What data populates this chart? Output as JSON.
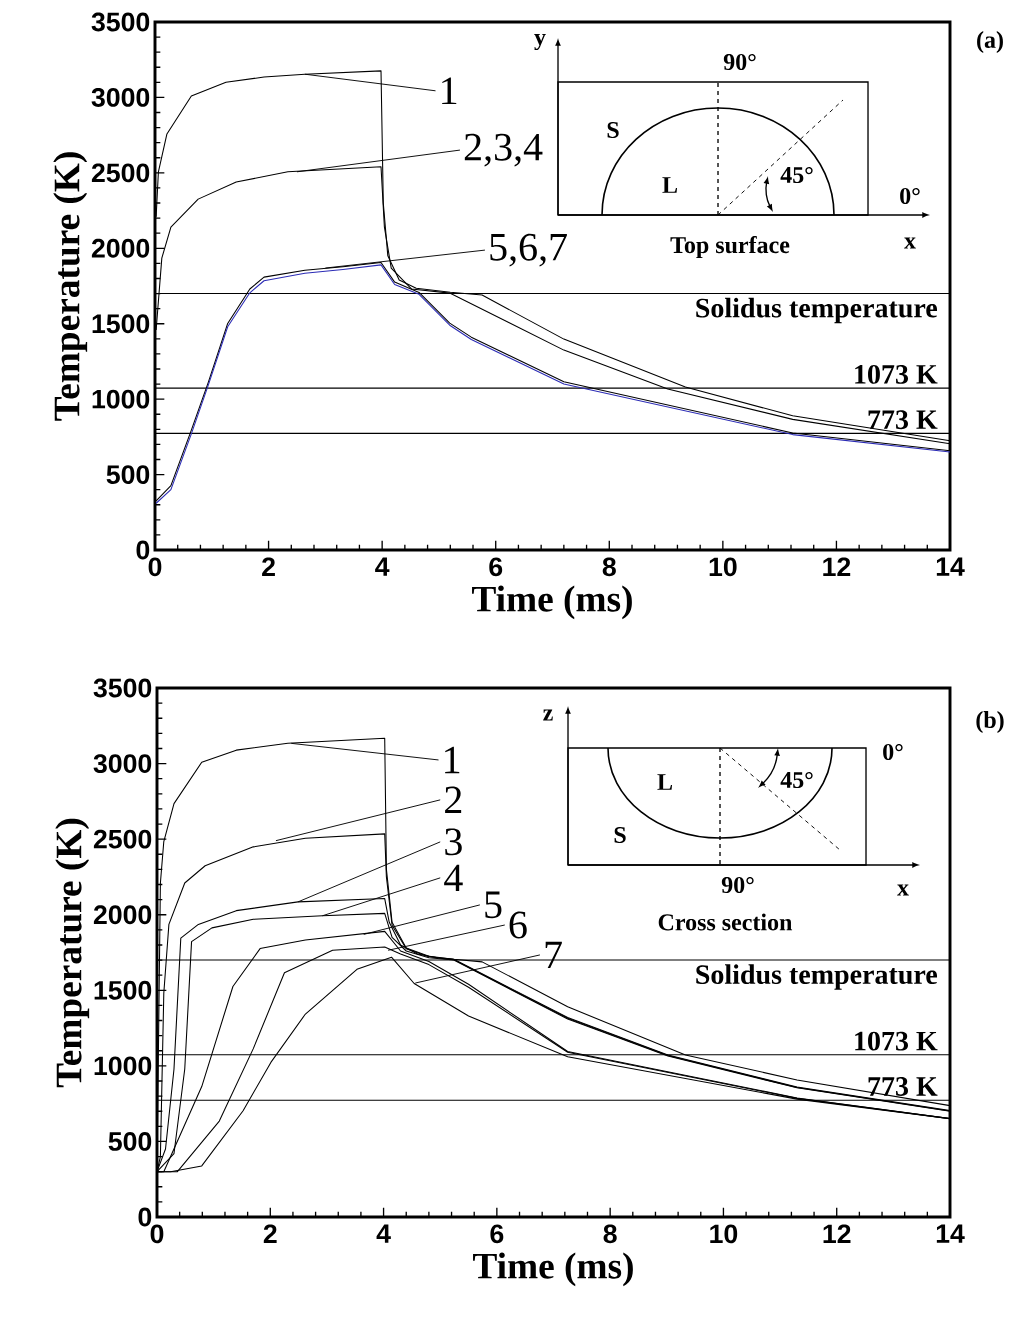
{
  "chart_data": [
    {
      "type": "line",
      "xlabel": "Time (ms)",
      "ylabel": "Temperature (K)",
      "xlim": [
        0,
        14
      ],
      "ylim": [
        0,
        3500
      ],
      "xticks": [
        0,
        2,
        4,
        6,
        8,
        10,
        12,
        14
      ],
      "yticks": [
        0,
        500,
        1000,
        1500,
        2000,
        2500,
        3000,
        3500
      ],
      "series": [
        {
          "color": "#000000",
          "x": [
            0.02,
            0.06,
            0.21,
            0.64,
            1.25,
            1.92,
            2.64,
            3.98,
            4.02,
            4.1,
            4.3,
            4.6,
            5.2,
            5.76,
            7.2,
            9.34,
            11.23,
            14
          ],
          "values": [
            2209,
            2507,
            2758,
            3009,
            3101,
            3135,
            3154,
            3176,
            2300,
            1950,
            1790,
            1735,
            1708,
            1690,
            1398,
            1080,
            890,
            724
          ]
        },
        {
          "color": "#000000",
          "x": [
            0.02,
            0.12,
            0.28,
            0.76,
            1.43,
            2.34,
            3.98,
            4.04,
            4.16,
            4.52,
            5.19,
            7.2,
            9.03,
            11.23,
            14
          ],
          "values": [
            1458,
            1935,
            2140,
            2326,
            2439,
            2507,
            2541,
            2140,
            1869,
            1730,
            1703,
            1325,
            1067,
            866,
            705
          ]
        },
        {
          "color": "#000000",
          "x": [
            0.02,
            0.28,
            0.64,
            0.94,
            1.28,
            1.67,
            1.92,
            2.64,
            3.31,
            3.98,
            4.22,
            4.65,
            5.19,
            5.57,
            7.2,
            11.23,
            14
          ],
          "values": [
            325,
            427,
            795,
            1113,
            1502,
            1730,
            1809,
            1855,
            1878,
            1906,
            1776,
            1707,
            1504,
            1411,
            1115,
            776,
            658
          ]
        },
        {
          "color": "#2b2bb5",
          "x": [
            0.02,
            0.28,
            0.64,
            0.94,
            1.28,
            1.67,
            1.92,
            2.64,
            3.31,
            3.98,
            4.22,
            4.65,
            5.19,
            5.57,
            7.2,
            11.23,
            14
          ],
          "values": [
            310,
            400,
            770,
            1095,
            1480,
            1705,
            1785,
            1835,
            1860,
            1890,
            1760,
            1695,
            1490,
            1395,
            1100,
            765,
            650
          ]
        }
      ],
      "ref_lines": [
        {
          "axis": "y",
          "value": 1700,
          "label": "Solidus temperature"
        },
        {
          "axis": "y",
          "value": 1073,
          "label": "1073 K"
        },
        {
          "axis": "y",
          "value": 773,
          "label": "773 K"
        }
      ],
      "annotations": [
        "y",
        "90°",
        "S",
        "L",
        "45°",
        "0°",
        "x",
        "Top surface",
        "(a)",
        {
          "text": "1",
          "x": 2.64,
          "y": 3154
        },
        {
          "text": "2,3,4",
          "x": 2.5,
          "y": 2507
        },
        {
          "text": "5,6,7",
          "x": 3.0,
          "y": 1869
        }
      ]
    },
    {
      "type": "line",
      "xlabel": "Time (ms)",
      "ylabel": "Temperature (K)",
      "xlim": [
        0,
        14
      ],
      "ylim": [
        0,
        3500
      ],
      "xticks": [
        0,
        2,
        4,
        6,
        8,
        10,
        12,
        14
      ],
      "yticks": [
        0,
        500,
        1000,
        1500,
        2000,
        2500,
        3000,
        3500
      ],
      "series": [
        {
          "color": "#000000",
          "x": [
            0,
            0.06,
            0.12,
            0.3,
            0.79,
            1.4,
            2.31,
            4.02,
            4.05,
            4.15,
            4.4,
            4.8,
            5.24,
            5.74,
            7.25,
            9.33,
            11.3,
            14
          ],
          "values": [
            300,
            2210,
            2484,
            2735,
            3009,
            3089,
            3134,
            3168,
            2300,
            1950,
            1780,
            1725,
            1705,
            1688,
            1391,
            1072,
            907,
            737
          ]
        },
        {
          "color": "#000000",
          "x": [
            0,
            0.06,
            0.12,
            0.21,
            0.49,
            0.85,
            1.7,
            2.62,
            4.02,
            4.05,
            4.15,
            4.4,
            4.8,
            5.24,
            7.25,
            9.02,
            11.3,
            14
          ],
          "values": [
            300,
            400,
            1480,
            1936,
            2210,
            2324,
            2449,
            2506,
            2535,
            2250,
            1930,
            1775,
            1722,
            1705,
            1320,
            1072,
            860,
            705
          ]
        },
        {
          "color": "#000000",
          "x": [
            0,
            0.15,
            0.3,
            0.42,
            0.73,
            1.4,
            2.49,
            4.02,
            4.1,
            4.3,
            4.6,
            5.0,
            5.24,
            7.25,
            9.02,
            11.3,
            14
          ],
          "values": [
            300,
            450,
            979,
            1845,
            1936,
            2027,
            2085,
            2107,
            1950,
            1800,
            1740,
            1712,
            1703,
            1315,
            1068,
            857,
            702
          ]
        },
        {
          "color": "#000000",
          "x": [
            0,
            0.3,
            0.49,
            0.61,
            0.97,
            1.7,
            2.92,
            4.02,
            4.15,
            4.4,
            4.8,
            5.24,
            7.25,
            9.02,
            11.3,
            14
          ],
          "values": [
            300,
            420,
            979,
            1822,
            1913,
            1970,
            1993,
            2009,
            1850,
            1760,
            1715,
            1700,
            1310,
            1065,
            855,
            700
          ]
        },
        {
          "color": "#000000",
          "x": [
            0,
            0.12,
            0.79,
            1.34,
            1.82,
            2.62,
            4.02,
            4.3,
            4.8,
            5.5,
            7.25,
            11.3,
            14
          ],
          "values": [
            300,
            300,
            863,
            1525,
            1776,
            1833,
            1890,
            1760,
            1690,
            1540,
            1095,
            788,
            651
          ]
        },
        {
          "color": "#000000",
          "x": [
            0,
            0.36,
            1.1,
            1.7,
            2.25,
            3.1,
            4.02,
            4.3,
            4.8,
            5.5,
            7.25,
            11.3,
            14
          ],
          "values": [
            300,
            300,
            635,
            1114,
            1616,
            1765,
            1787,
            1740,
            1670,
            1520,
            1090,
            785,
            651
          ]
        },
        {
          "color": "#000000",
          "x": [
            0,
            0.24,
            0.79,
            1.52,
            2.01,
            2.62,
            3.53,
            4.14,
            4.54,
            5.5,
            7.25,
            11.3,
            14
          ],
          "values": [
            300,
            300,
            338,
            703,
            1023,
            1343,
            1639,
            1719,
            1545,
            1330,
            1060,
            780,
            651
          ]
        }
      ],
      "ref_lines": [
        {
          "axis": "y",
          "value": 1700,
          "label": "Solidus temperature"
        },
        {
          "axis": "y",
          "value": 1073,
          "label": "1073 K"
        },
        {
          "axis": "y",
          "value": 773,
          "label": "773 K"
        }
      ],
      "annotations": [
        "z",
        "L",
        "S",
        "45°",
        "0°",
        "90°",
        "x",
        "Cross section",
        "(b)",
        {
          "text": "1",
          "x": 2.37,
          "y": 3134
        },
        {
          "text": "2",
          "x": 2.1,
          "y": 2490
        },
        {
          "text": "3",
          "x": 2.49,
          "y": 2085
        },
        {
          "text": "4",
          "x": 2.92,
          "y": 1993
        },
        {
          "text": "5",
          "x": 3.65,
          "y": 1870
        },
        {
          "text": "6",
          "x": 4.08,
          "y": 1765
        },
        {
          "text": "7",
          "x": 4.56,
          "y": 1548
        }
      ]
    }
  ]
}
